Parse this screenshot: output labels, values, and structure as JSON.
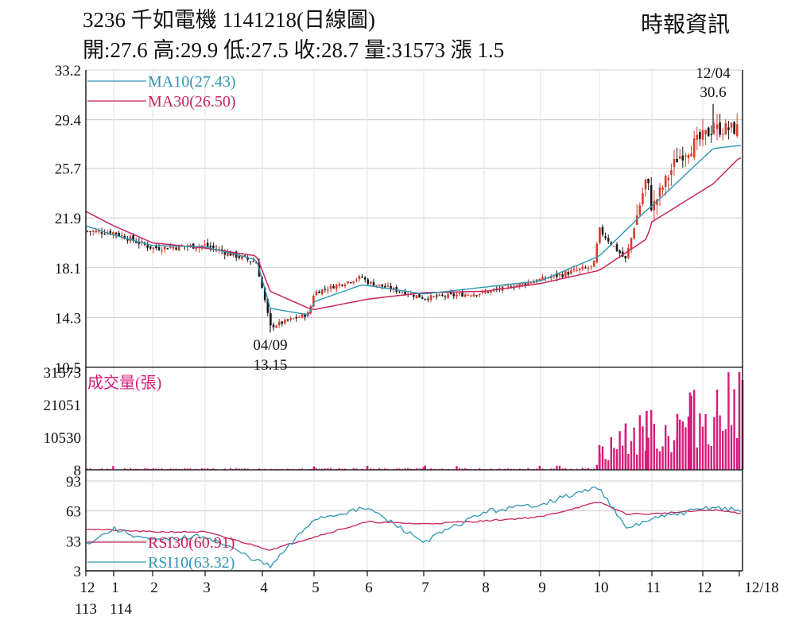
{
  "header": {
    "title": "3236  千如電機 1141218(日線圖)",
    "ohlc": "開:27.6 高:29.9 低:27.5 收:28.7 量:31573 漲 1.5",
    "source": "時報資訊"
  },
  "colors": {
    "up_candle": "#d93a2b",
    "down_candle": "#1a1a1a",
    "ma10": "#2e96b3",
    "ma30": "#c8245e",
    "volume": "#d81b7a",
    "rsi30": "#c8245e",
    "rsi10": "#2e96b3",
    "grid": "#cccccc"
  },
  "chart_data": [
    {
      "type": "candlestick",
      "panel": "price",
      "ylim": [
        10.5,
        33.2
      ],
      "y_ticks": [
        "33.2",
        "29.4",
        "25.7",
        "21.9",
        "18.1",
        "14.3",
        "10.5"
      ],
      "grid": true,
      "legend": [
        {
          "label": "MA10(27.43)",
          "color": "#2e96b3"
        },
        {
          "label": "MA30(26.50)",
          "color": "#c8245e"
        }
      ],
      "annotations": [
        {
          "date_label": "12/04",
          "value_label": "30.6",
          "kind": "high"
        },
        {
          "date_label": "04/09",
          "value_label": "13.15",
          "kind": "low"
        }
      ],
      "close_keypoints": [
        {
          "x": "113/12",
          "y": 20.9
        },
        {
          "x": "114/01",
          "y": 20.8
        },
        {
          "x": "114/02",
          "y": 19.6
        },
        {
          "x": "114/03",
          "y": 19.8
        },
        {
          "x": "114/03 end",
          "y": 18.5
        },
        {
          "x": "04/09",
          "y": 13.6
        },
        {
          "x": "114/04 end",
          "y": 14.6
        },
        {
          "x": "114/05",
          "y": 16.2
        },
        {
          "x": "114/05 end",
          "y": 17.4
        },
        {
          "x": "114/06",
          "y": 17.0
        },
        {
          "x": "114/07",
          "y": 15.8
        },
        {
          "x": "114/08",
          "y": 16.2
        },
        {
          "x": "114/09",
          "y": 17.2
        },
        {
          "x": "114/09 end",
          "y": 18.2
        },
        {
          "x": "114/10",
          "y": 21.0
        },
        {
          "x": "114/10 mid",
          "y": 18.7
        },
        {
          "x": "114/10 end",
          "y": 25.0
        },
        {
          "x": "114/11",
          "y": 22.6
        },
        {
          "x": "114/11 mid",
          "y": 26.5
        },
        {
          "x": "12/04",
          "y": 28.7
        },
        {
          "x": "12/18",
          "y": 28.7
        }
      ],
      "ma10_keypoints": [
        {
          "x": "113/12",
          "y": 21.3
        },
        {
          "x": "114/01",
          "y": 20.6
        },
        {
          "x": "114/02",
          "y": 19.8
        },
        {
          "x": "114/03",
          "y": 19.7
        },
        {
          "x": "114/03 end",
          "y": 18.7
        },
        {
          "x": "04/09",
          "y": 15.0
        },
        {
          "x": "114/04 end",
          "y": 14.5
        },
        {
          "x": "114/05",
          "y": 15.5
        },
        {
          "x": "114/05 end",
          "y": 16.8
        },
        {
          "x": "114/07",
          "y": 16.1
        },
        {
          "x": "114/09",
          "y": 17.1
        },
        {
          "x": "114/10",
          "y": 19.0
        },
        {
          "x": "114/10 end",
          "y": 22.5
        },
        {
          "x": "114/11",
          "y": 22.8
        },
        {
          "x": "12/04",
          "y": 27.2
        },
        {
          "x": "12/18",
          "y": 27.43
        }
      ],
      "ma30_keypoints": [
        {
          "x": "113/12",
          "y": 22.4
        },
        {
          "x": "114/01",
          "y": 21.3
        },
        {
          "x": "114/02",
          "y": 20.0
        },
        {
          "x": "114/03",
          "y": 19.6
        },
        {
          "x": "114/03 end",
          "y": 19.0
        },
        {
          "x": "04/09",
          "y": 16.3
        },
        {
          "x": "114/04 end",
          "y": 15.0
        },
        {
          "x": "114/05",
          "y": 14.9
        },
        {
          "x": "114/06",
          "y": 15.7
        },
        {
          "x": "114/07",
          "y": 16.2
        },
        {
          "x": "114/08",
          "y": 16.3
        },
        {
          "x": "114/09",
          "y": 16.9
        },
        {
          "x": "114/10",
          "y": 17.9
        },
        {
          "x": "114/10 end",
          "y": 20.3
        },
        {
          "x": "114/11",
          "y": 21.6
        },
        {
          "x": "12/04",
          "y": 24.5
        },
        {
          "x": "12/18",
          "y": 26.5
        }
      ]
    },
    {
      "type": "bar",
      "panel": "volume",
      "legend": [
        {
          "label": "成交量(張)",
          "color": "#d81b7a"
        }
      ],
      "ylim": [
        8,
        31573
      ],
      "y_ticks": [
        "31573",
        "21051",
        "10530",
        "8"
      ],
      "spikes": [
        {
          "x": "114/05",
          "y": 1100
        },
        {
          "x": "114/06",
          "y": 1300
        },
        {
          "x": "114/07",
          "y": 900
        },
        {
          "x": "114/10",
          "y": 8000
        },
        {
          "x": "114/10 mid",
          "y": 15000
        },
        {
          "x": "114/10 end",
          "y": 19000
        },
        {
          "x": "114/11 mid",
          "y": 18000
        },
        {
          "x": "114/11 late",
          "y": 25000
        },
        {
          "x": "114/12",
          "y": 29000
        },
        {
          "x": "12/18",
          "y": 31573
        }
      ]
    },
    {
      "type": "line",
      "panel": "rsi",
      "ylim": [
        3,
        93
      ],
      "y_ticks": [
        "93",
        "63",
        "33",
        "3"
      ],
      "grid": true,
      "series": [
        {
          "name": "RSI30(60.91)",
          "color": "#c8245e",
          "keypoints": [
            {
              "x": "113/12",
              "y": 45
            },
            {
              "x": "114/02",
              "y": 42
            },
            {
              "x": "114/03",
              "y": 42
            },
            {
              "x": "04/09",
              "y": 24
            },
            {
              "x": "114/05",
              "y": 37
            },
            {
              "x": "114/06",
              "y": 52
            },
            {
              "x": "114/07",
              "y": 50
            },
            {
              "x": "114/08",
              "y": 53
            },
            {
              "x": "114/09",
              "y": 57
            },
            {
              "x": "114/10",
              "y": 72
            },
            {
              "x": "114/10 mid",
              "y": 60
            },
            {
              "x": "114/11",
              "y": 60
            },
            {
              "x": "12/04",
              "y": 64
            },
            {
              "x": "12/18",
              "y": 60.91
            }
          ]
        },
        {
          "name": "RSI10(63.32)",
          "color": "#2e96b3",
          "keypoints": [
            {
              "x": "113/12",
              "y": 30
            },
            {
              "x": "114/01",
              "y": 45
            },
            {
              "x": "114/02",
              "y": 33
            },
            {
              "x": "114/03",
              "y": 38
            },
            {
              "x": "04/09",
              "y": 7
            },
            {
              "x": "114/05",
              "y": 55
            },
            {
              "x": "114/06",
              "y": 66
            },
            {
              "x": "114/07",
              "y": 32
            },
            {
              "x": "114/08",
              "y": 62
            },
            {
              "x": "114/09",
              "y": 70
            },
            {
              "x": "114/10",
              "y": 87
            },
            {
              "x": "114/10 mid",
              "y": 45
            },
            {
              "x": "114/11",
              "y": 55
            },
            {
              "x": "12/04",
              "y": 67
            },
            {
              "x": "12/18",
              "y": 63.32
            }
          ]
        }
      ]
    }
  ],
  "x_axis": {
    "ticks": [
      "12",
      "1",
      "2",
      "3",
      "4",
      "5",
      "6",
      "7",
      "8",
      "9",
      "10",
      "11",
      "12",
      "12/18"
    ],
    "year_labels": [
      "113",
      "114"
    ]
  }
}
